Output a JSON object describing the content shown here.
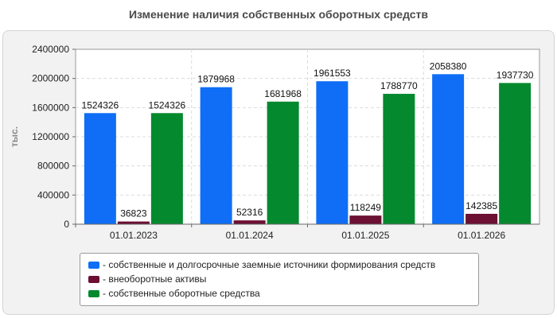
{
  "title": "Изменение наличия собственных оборотных средств",
  "chart_data": {
    "type": "bar",
    "ylabel": "тыс.",
    "ylim": [
      0,
      2400000
    ],
    "yticks": [
      "0",
      "400000",
      "800000",
      "1200000",
      "1600000",
      "2000000",
      "2400000"
    ],
    "categories": [
      "01.01.2023",
      "01.01.2024",
      "01.01.2025",
      "01.01.2026"
    ],
    "grid": true,
    "legend_position": "bottom",
    "series": [
      {
        "name": "- собственные и долгосрочные заемные источники формирования средств",
        "color": "#0f6ef5",
        "values": [
          1524326,
          1879968,
          1961553,
          2058380
        ],
        "labels": [
          "1524326",
          "1879968",
          "1961553",
          "2058380"
        ]
      },
      {
        "name": "- внеоборотные активы",
        "color": "#6b0f33",
        "values": [
          36823,
          52316,
          118249,
          142385
        ],
        "labels": [
          "36823",
          "52316",
          "118249",
          "142385"
        ]
      },
      {
        "name": "- собственные оборотные средства",
        "color": "#05892e",
        "values": [
          1524326,
          1681968,
          1788770,
          1937730
        ],
        "labels": [
          "1524326",
          "1681968",
          "1788770",
          "1937730"
        ]
      }
    ]
  }
}
